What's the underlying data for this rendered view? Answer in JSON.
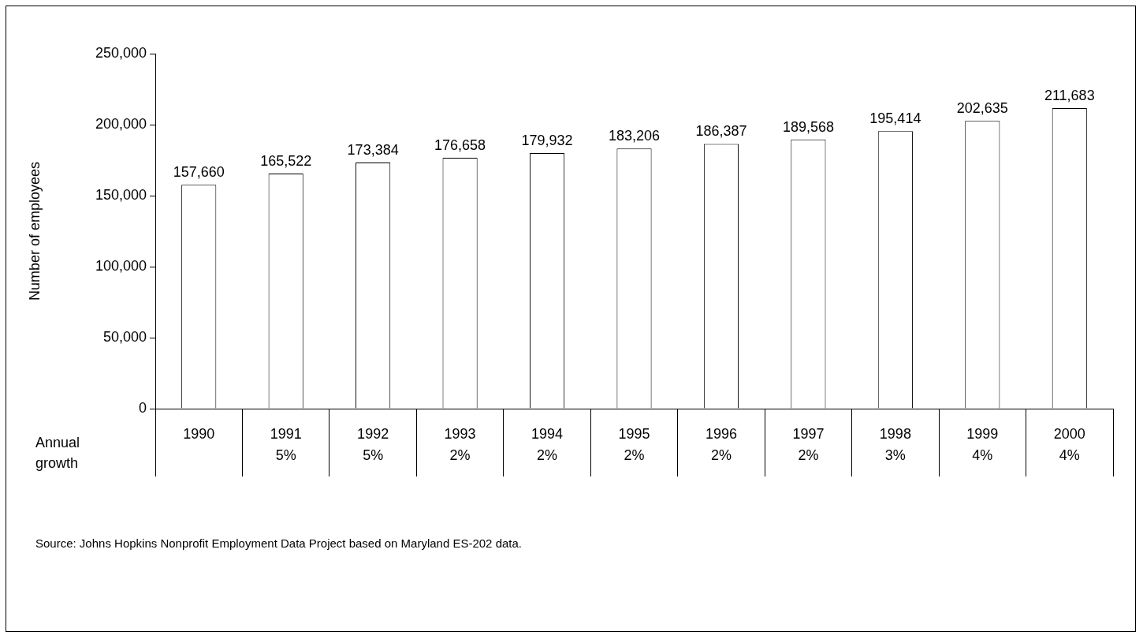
{
  "chart_data": {
    "type": "bar",
    "ylabel": "Number of employees",
    "categories": [
      "1990",
      "1991",
      "1992",
      "1993",
      "1994",
      "1995",
      "1996",
      "1997",
      "1998",
      "1999",
      "2000"
    ],
    "values": [
      157660,
      165522,
      173384,
      176658,
      179932,
      183206,
      186387,
      189568,
      195414,
      202635,
      211683
    ],
    "color": "#ffffff",
    "value_labels": [
      "157,660",
      "165,522",
      "173,384",
      "176,658",
      "179,932",
      "183,206",
      "186,387",
      "189,568",
      "195,414",
      "202,635",
      "211,683"
    ],
    "ylim": [
      0,
      250000
    ],
    "yticks": [
      {
        "value": 0,
        "label": "0"
      },
      {
        "value": 50000,
        "label": "50,000"
      },
      {
        "value": 100000,
        "label": "100,000"
      },
      {
        "value": 150000,
        "label": "150,000"
      },
      {
        "value": 200000,
        "label": "200,000"
      },
      {
        "value": 250000,
        "label": "250,000"
      }
    ],
    "grid": false,
    "legend": false,
    "annotations": [
      "Annual growth",
      "5%",
      "5%",
      "2%",
      "2%",
      "2%",
      "2%",
      "2%",
      "3%",
      "4%",
      "4%",
      "Source: Johns Hopkins Nonprofit Employment Data Project based on Maryland ES-202 data."
    ]
  }
}
